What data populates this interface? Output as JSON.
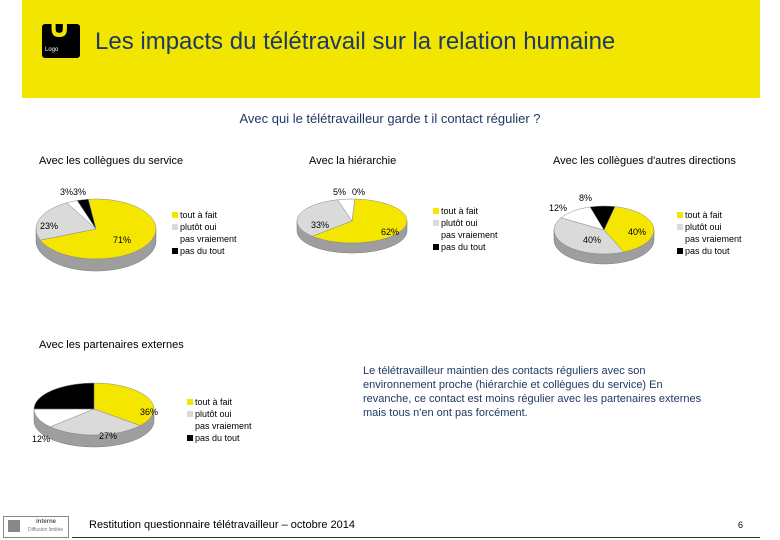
{
  "header": {
    "title": "Les impacts du télétravail sur la relation humaine",
    "logo_text": "Logo"
  },
  "question": "Avec qui le télétravailleur garde t il contact régulier ?",
  "colors": {
    "tout_a_fait": "#f5e600",
    "plutot_oui": "#dadada",
    "pas_vraiement": "#ffffff",
    "pas_du_tout": "#000000",
    "banner": "#f2e600",
    "title": "#1f3864"
  },
  "legend": [
    "tout à fait",
    "plutôt oui",
    "pas vraiement",
    "pas du tout"
  ],
  "chart_data": [
    {
      "type": "pie",
      "title": "Avec les collègues du service",
      "categories": [
        "tout à fait",
        "plutôt oui",
        "pas vraiement",
        "pas du tout"
      ],
      "values": [
        71,
        23,
        3,
        3
      ],
      "labels": [
        "71%",
        "23%",
        "3%",
        "3%"
      ]
    },
    {
      "type": "pie",
      "title": "Avec la hiérarchie",
      "categories": [
        "tout à fait",
        "plutôt oui",
        "pas vraiement",
        "pas du tout"
      ],
      "values": [
        62,
        33,
        5,
        0
      ],
      "labels": [
        "62%",
        "33%",
        "5%",
        "0%"
      ]
    },
    {
      "type": "pie",
      "title": "Avec les collègues d'autres directions",
      "categories": [
        "tout à fait",
        "plutôt oui",
        "pas vraiement",
        "pas du tout"
      ],
      "values": [
        40,
        40,
        12,
        8
      ],
      "labels": [
        "40%",
        "40%",
        "12%",
        "8%"
      ]
    },
    {
      "type": "pie",
      "title": "Avec les partenaires externes",
      "categories": [
        "tout à fait",
        "plutôt oui",
        "pas vraiement",
        "pas du tout"
      ],
      "values": [
        36,
        27,
        12,
        25
      ],
      "labels": [
        "36%",
        "27%",
        "12%",
        ""
      ]
    }
  ],
  "comment": "Le télétravailleur maintien des contacts réguliers avec son environnement proche (hiérarchie et collègues du service) En revanche, ce contact est moins régulier avec les partenaires externes mais tous n'en ont pas forcément.",
  "footer": {
    "text": "Restitution questionnaire télétravailleur – octobre 2014",
    "page": "6",
    "badge_line1": "interne",
    "badge_line2": "Diffusion limitée"
  }
}
